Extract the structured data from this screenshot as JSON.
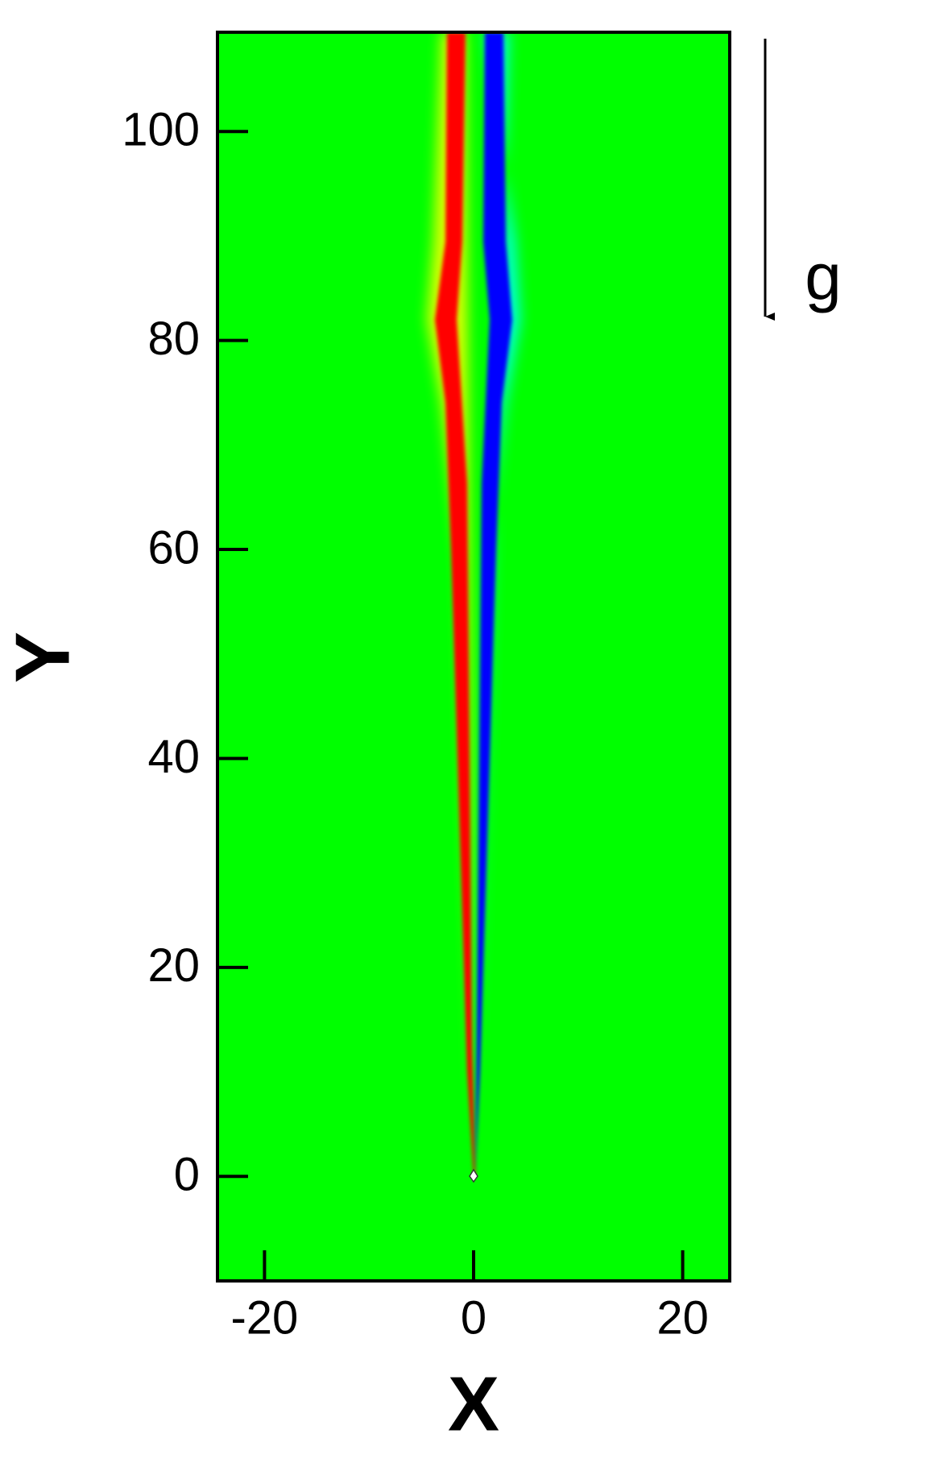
{
  "chart_data": {
    "type": "contour",
    "xlabel": "X",
    "ylabel": "Y",
    "xlim": [
      -24.5,
      24.5
    ],
    "ylim": [
      -10,
      109.5
    ],
    "xticks": [
      -20,
      0,
      20
    ],
    "yticks": [
      0,
      20,
      40,
      60,
      80,
      100
    ],
    "background_color": "#00ff00",
    "annotation": "g"
  }
}
